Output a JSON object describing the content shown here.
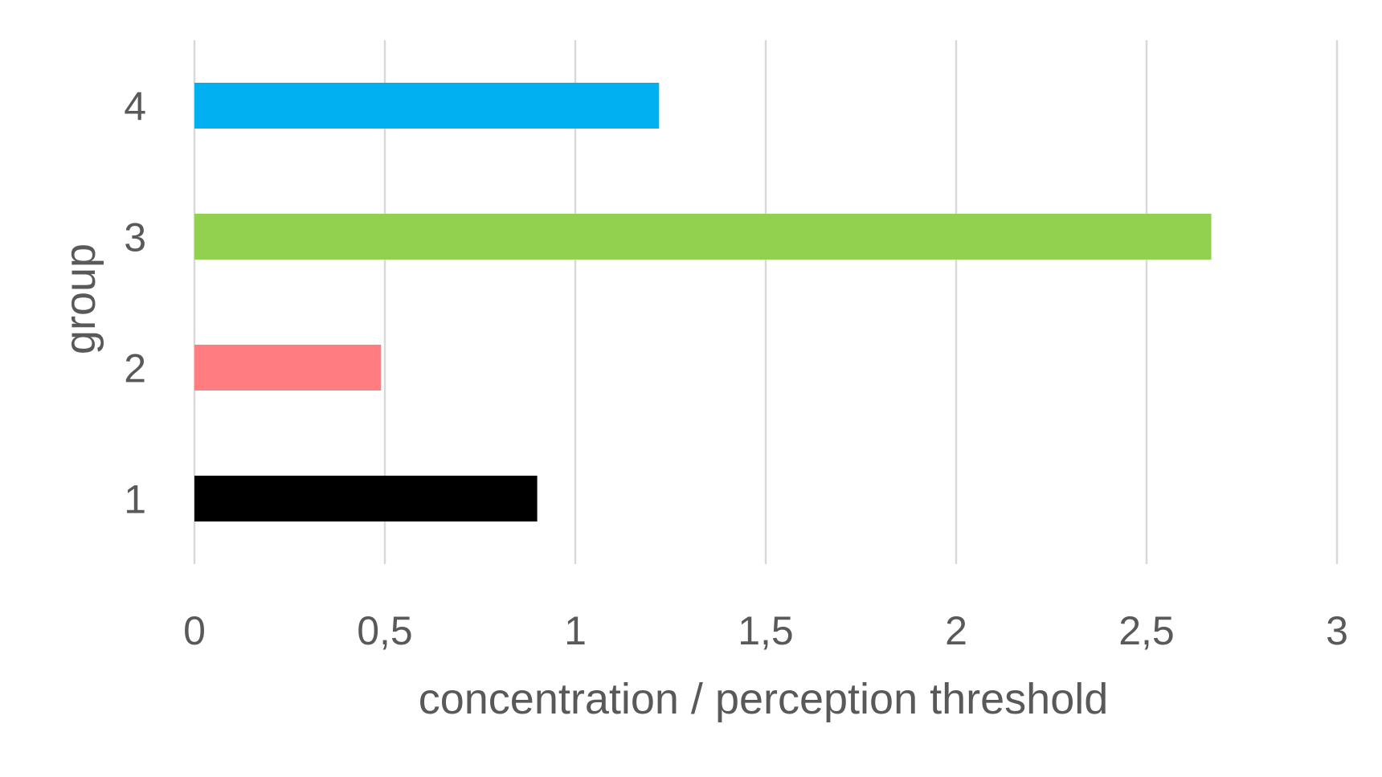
{
  "chart_data": {
    "type": "bar",
    "orientation": "horizontal",
    "categories": [
      "1",
      "2",
      "3",
      "4"
    ],
    "values": [
      0.9,
      0.49,
      2.67,
      1.22
    ],
    "bar_colors": [
      "#000000",
      "#ff7c80",
      "#92d050",
      "#00b0f0"
    ],
    "xlabel": "concentration / perception threshold",
    "ylabel": "group",
    "xlim": [
      0,
      3
    ],
    "x_ticks": [
      0,
      0.5,
      1,
      1.5,
      2,
      2.5,
      3
    ],
    "x_tick_labels": [
      "0",
      "0,5",
      "1",
      "1,5",
      "2",
      "2,5",
      "3"
    ],
    "grid": "vertical",
    "legend": "none"
  }
}
